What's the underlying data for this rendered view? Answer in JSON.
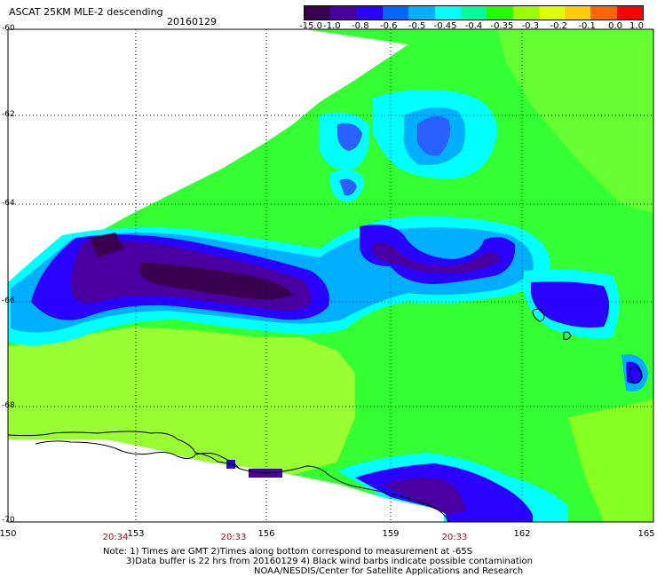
{
  "header": {
    "title": "ASCAT 25KM MLE-2 descending",
    "date": "20160129"
  },
  "colorbar": {
    "ticks": [
      "-15.0",
      "-1.0",
      "-0.8",
      "-0.6",
      "-0.5",
      "-0.45",
      "-0.4",
      "-0.35",
      "-0.3",
      "-0.2",
      "-0.1",
      "0.0",
      "1.0"
    ],
    "colors": [
      "#3a0050",
      "#4a00a0",
      "#2a00ff",
      "#0066ff",
      "#00b0ff",
      "#00ffff",
      "#00ff99",
      "#22ff00",
      "#99ff00",
      "#ddff00",
      "#ffcc00",
      "#ff6600",
      "#ff0000"
    ]
  },
  "axes": {
    "lon_ticks": [
      "150",
      "153",
      "156",
      "159",
      "162",
      "165"
    ],
    "lat_ticks": [
      "-60",
      "-62",
      "-64",
      "-66",
      "-68",
      "-70"
    ],
    "times": [
      "20:34",
      "20:33",
      "20:33"
    ]
  },
  "notes": {
    "line1": "Note: 1) Times are GMT 2)Times along bottom correspond to measurement at -65S",
    "line2": "3)Data buffer is 22 hrs from 20160129 4) Black wind barbs indicate possible contamination",
    "line3": "NOAA/NESDIS/Center for Satellite Applications and Research"
  }
}
